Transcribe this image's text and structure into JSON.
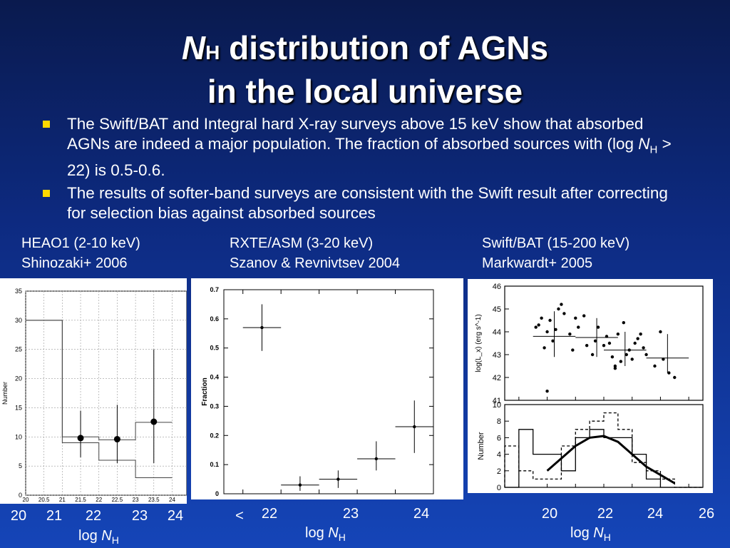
{
  "title": {
    "line1_prefix": "N",
    "line1_sub": "H",
    "line1_rest": " distribution of AGNs",
    "line2": "in the local universe"
  },
  "bullets": [
    {
      "pre": "The Swift/BAT and Integral hard X-ray surveys above 15 keV show that absorbed AGNs are indeed a major population. The fraction of absorbed sources with (log ",
      "n": "N",
      "sub": "H",
      "post": " > 22) is 0.5-0.6."
    },
    {
      "text": "The results of softer-band surveys are consistent with the Swift result after correcting for selection bias against absorbed sources"
    }
  ],
  "panels": [
    {
      "heading1": "HEAO1 (2-10 keV)",
      "heading2": "Shinozaki+ 2006"
    },
    {
      "heading1": "RXTE/ASM (3-20 keV)",
      "heading2": "Szanov & Revnivtsev 2004"
    },
    {
      "heading1": "Swift/BAT (15-200 keV)",
      "heading2": "Markwardt+ 2005"
    }
  ],
  "bottom_ticks": {
    "p1": [
      "20",
      "21",
      "22",
      "23",
      "24"
    ],
    "p2": [
      "<",
      "22",
      "23",
      "24"
    ],
    "p3": [
      "20",
      "22",
      "24",
      "26"
    ]
  },
  "axis_label": {
    "pre": "log ",
    "n": "N",
    "sub": "H"
  },
  "chart_data": [
    {
      "type": "bar",
      "ylabel": "Number",
      "ylim": [
        0,
        35
      ],
      "yticks": [
        "0",
        "5",
        "10",
        "15",
        "20",
        "25",
        "30",
        "35"
      ],
      "xticks": [
        "20",
        "20.5",
        "21",
        "21.5",
        "22",
        "22.5",
        "23",
        "23.5",
        "24"
      ],
      "bins": [
        [
          20,
          21
        ],
        [
          21,
          22
        ],
        [
          22,
          23
        ],
        [
          23,
          24
        ]
      ],
      "hist_upper": [
        30,
        10,
        9.5,
        12.5
      ],
      "hist_lower": [
        30,
        9,
        6,
        3
      ],
      "points": [
        {
          "x": 21.5,
          "y": 9.8,
          "ylo": 6.5,
          "yhi": 14.5
        },
        {
          "x": 22.5,
          "y": 9.6,
          "ylo": 5.5,
          "yhi": 15.5
        },
        {
          "x": 23.5,
          "y": 12.6,
          "ylo": 5.5,
          "yhi": 25
        }
      ]
    },
    {
      "type": "scatter",
      "ylabel": "Fraction",
      "ylim": [
        0,
        0.7
      ],
      "yticks": [
        "0",
        "0.1",
        "0.2",
        "0.3",
        "0.4",
        "0.5",
        "0.6",
        "0.7"
      ],
      "points": [
        {
          "x": 20.5,
          "xlo": 20,
          "xhi": 21,
          "y": 0.57,
          "ylo": 0.49,
          "yhi": 0.65
        },
        {
          "x": 21.5,
          "xlo": 21,
          "xhi": 22,
          "y": 0.03,
          "ylo": 0.01,
          "yhi": 0.06
        },
        {
          "x": 22.5,
          "xlo": 22,
          "xhi": 23,
          "y": 0.05,
          "ylo": 0.02,
          "yhi": 0.08
        },
        {
          "x": 23.5,
          "xlo": 23,
          "xhi": 24,
          "y": 0.12,
          "ylo": 0.08,
          "yhi": 0.18
        },
        {
          "x": 24.5,
          "xlo": 24,
          "xhi": 25,
          "y": 0.23,
          "ylo": 0.14,
          "yhi": 0.32
        }
      ]
    },
    {
      "type": "scatter",
      "ylabel": "log(L_x) (erg s^-1)",
      "ylim": [
        41,
        46
      ],
      "yticks": [
        "41",
        "42",
        "43",
        "44",
        "45",
        "46"
      ],
      "scatter": [
        [
          20.6,
          44.2
        ],
        [
          20.8,
          44.6
        ],
        [
          20.9,
          43.3
        ],
        [
          20.7,
          44.3
        ],
        [
          21.1,
          44.5
        ],
        [
          21.2,
          43.6
        ],
        [
          21.0,
          44.0
        ],
        [
          21.3,
          44.1
        ],
        [
          21.4,
          45.0
        ],
        [
          21.5,
          45.2
        ],
        [
          21.6,
          44.8
        ],
        [
          21.9,
          43.2
        ],
        [
          21.8,
          43.9
        ],
        [
          22.1,
          44.2
        ],
        [
          22.4,
          43.4
        ],
        [
          22.3,
          44.7
        ],
        [
          22.6,
          43.0
        ],
        [
          22.8,
          44.2
        ],
        [
          23.0,
          43.4
        ],
        [
          23.1,
          43.8
        ],
        [
          23.2,
          43.5
        ],
        [
          23.3,
          42.9
        ],
        [
          23.4,
          42.4
        ],
        [
          23.5,
          43.9
        ],
        [
          23.6,
          42.7
        ],
        [
          23.7,
          44.4
        ],
        [
          23.8,
          43.0
        ],
        [
          23.9,
          43.2
        ],
        [
          24.0,
          42.8
        ],
        [
          24.1,
          43.5
        ],
        [
          24.2,
          43.7
        ],
        [
          24.4,
          43.3
        ],
        [
          24.5,
          43.0
        ],
        [
          24.8,
          42.5
        ],
        [
          25.0,
          44.0
        ],
        [
          25.1,
          42.8
        ],
        [
          25.3,
          42.2
        ],
        [
          25.5,
          42.0
        ],
        [
          21.0,
          41.4
        ],
        [
          22.7,
          43.6
        ],
        [
          23.4,
          42.5
        ],
        [
          24.3,
          43.9
        ],
        [
          22.0,
          44.6
        ]
      ],
      "means": [
        {
          "xlo": 20.5,
          "xhi": 22,
          "y": 43.8,
          "ylo": 42.9,
          "yhi": 44.9
        },
        {
          "xlo": 22,
          "xhi": 23.5,
          "y": 43.75,
          "ylo": 42.9,
          "yhi": 44.6
        },
        {
          "xlo": 23,
          "xhi": 24.5,
          "y": 43.2,
          "ylo": 42.5,
          "yhi": 44.0
        },
        {
          "xlo": 24.5,
          "xhi": 26,
          "y": 42.85,
          "ylo": 42.2,
          "yhi": 43.9
        }
      ]
    },
    {
      "type": "bar",
      "ylabel": "Number",
      "ylim": [
        0,
        10
      ],
      "yticks": [
        "0",
        "2",
        "4",
        "6",
        "8",
        "10"
      ],
      "edges": [
        19.5,
        20,
        20.5,
        21,
        21.5,
        22,
        22.5,
        23,
        23.5,
        24,
        24.5,
        25,
        25.5,
        26,
        26.5
      ],
      "solid": [
        0,
        7,
        4,
        4,
        2,
        6,
        7,
        6,
        6,
        4,
        1,
        0,
        0,
        0
      ],
      "dashed": [
        5,
        2,
        1,
        1,
        5,
        7,
        8,
        9,
        7,
        3,
        2,
        1,
        0,
        0
      ],
      "curve": [
        [
          21.0,
          2.0
        ],
        [
          21.5,
          3.5
        ],
        [
          22.0,
          5.0
        ],
        [
          22.5,
          6.0
        ],
        [
          23.0,
          6.2
        ],
        [
          23.5,
          5.5
        ],
        [
          24.0,
          4.0
        ],
        [
          24.5,
          2.5
        ],
        [
          25.0,
          1.5
        ],
        [
          25.5,
          0.5
        ]
      ]
    }
  ]
}
